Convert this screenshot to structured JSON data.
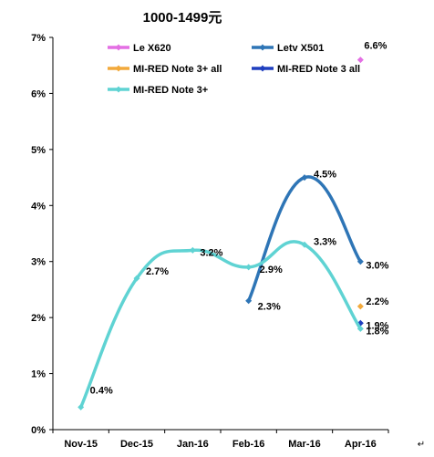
{
  "chart_data": {
    "type": "line",
    "title": "1000-1499元",
    "categories": [
      "Nov-15",
      "Dec-15",
      "Jan-16",
      "Feb-16",
      "Mar-16",
      "Apr-16"
    ],
    "ylim": [
      0,
      7
    ],
    "yticks": [
      "0%",
      "1%",
      "2%",
      "3%",
      "4%",
      "5%",
      "6%",
      "7%"
    ],
    "xlabel": "",
    "ylabel": "",
    "grid": false,
    "legend_position": "top",
    "series": [
      {
        "name": "Le X620",
        "color": "#E36FE3",
        "values": [
          null,
          null,
          null,
          null,
          null,
          6.6
        ],
        "labels": [
          null,
          null,
          null,
          null,
          null,
          "6.6%"
        ]
      },
      {
        "name": "Letv X501",
        "color": "#2E75B6",
        "values": [
          null,
          null,
          null,
          2.3,
          4.5,
          3.0
        ],
        "labels": [
          null,
          null,
          null,
          "2.3%",
          "4.5%",
          "3.0%"
        ]
      },
      {
        "name": "MI-RED Note 3+ all",
        "color": "#F2A93B",
        "values": [
          null,
          null,
          null,
          null,
          null,
          2.2
        ],
        "labels": [
          null,
          null,
          null,
          null,
          null,
          "2.2%"
        ]
      },
      {
        "name": "MI-RED Note 3 all",
        "color": "#1F3FBF",
        "values": [
          null,
          null,
          null,
          null,
          null,
          1.9
        ],
        "labels": [
          null,
          null,
          null,
          null,
          null,
          "1.9%"
        ]
      },
      {
        "name": "MI-RED Note 3+",
        "color": "#5FD3D3",
        "values": [
          0.4,
          2.7,
          3.2,
          2.9,
          3.3,
          1.8
        ],
        "labels": [
          "0.4%",
          "2.7%",
          "3.2%",
          "2.9%",
          "3.3%",
          "1.8%"
        ]
      }
    ]
  },
  "corner_mark": "↵"
}
